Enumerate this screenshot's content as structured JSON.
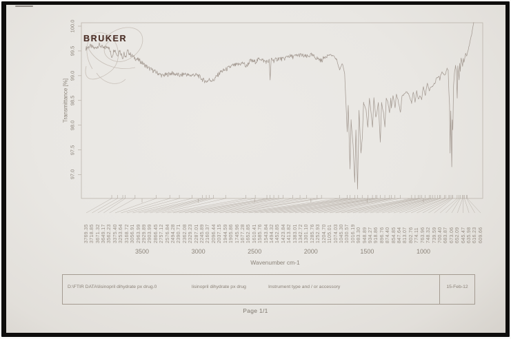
{
  "logo": {
    "text": "BRUKER"
  },
  "footer": {
    "file_path": "D:\\FTIR DATA\\lisinopril dihydrate px drug.0",
    "sample_name": "lisinopril dihydrate px drug",
    "instrument": "Instrument type and / or accessory",
    "date": "15-Feb-12"
  },
  "page": {
    "page_label": "Page 1/1"
  },
  "colors": {
    "paper": "#e9e7e3",
    "ink": "#8b8379",
    "spectrum_line": "#a0968d",
    "fan_line": "#a89f96",
    "frame_line": "#bcb5ac",
    "logo_ink": "#4e322a"
  },
  "chart_data": {
    "type": "line",
    "title": "",
    "xlabel": "Wavenumber cm-1",
    "ylabel": "Transmittance [%]",
    "x_axis_reversed": true,
    "x_range": [
      4000,
      550
    ],
    "y_range": [
      96.6,
      100.1
    ],
    "x_ticks": [
      3500,
      3000,
      2500,
      2000,
      1500,
      1000
    ],
    "y_ticks": [
      100.0,
      99.5,
      99.0,
      98.5,
      98.0,
      97.5,
      97.0
    ],
    "grid": false,
    "legend": "none",
    "noise_amp_high_wavenumber": 0.045,
    "noise_amp_fingerprint": 0.015,
    "peak_labels": [
      "3769.35",
      "3718.85",
      "3671.32",
      "3649.17",
      "3562.23",
      "3375.40",
      "3253.64",
      "3168.72",
      "3056.91",
      "2963.99",
      "2929.89",
      "2903.99",
      "2866.45",
      "2757.12",
      "2576.84",
      "2494.28",
      "2390.71",
      "2362.08",
      "2329.23",
      "2287.01",
      "2245.89",
      "2160.37",
      "2096.44",
      "2037.15",
      "1944.59",
      "1905.86",
      "1745.96",
      "1677.28",
      "1652.85",
      "1610.41",
      "1585.76",
      "1543.84",
      "1494.32",
      "1452.85",
      "1423.84",
      "1413.82",
      "1383.01",
      "1342.72",
      "1301.10",
      "1285.76",
      "1252.93",
      "1204.70",
      "1105.01",
      "1074.03",
      "1045.30",
      "1030.57",
      "1016.19",
      "983.30",
      "948.89",
      "934.27",
      "918.86",
      "896.76",
      "874.40",
      "854.85",
      "847.64",
      "813.07",
      "802.76",
      "774.11",
      "763.96",
      "748.32",
      "739.59",
      "700.40",
      "683.87",
      "673.06",
      "652.09",
      "645.47",
      "635.98",
      "616.23",
      "609.66"
    ],
    "series": [
      {
        "name": "transmittance",
        "points": [
          [
            4000,
            99.55
          ],
          [
            3960,
            99.6
          ],
          [
            3920,
            99.55
          ],
          [
            3880,
            99.62
          ],
          [
            3840,
            99.55
          ],
          [
            3800,
            99.6
          ],
          [
            3769,
            99.38
          ],
          [
            3745,
            99.55
          ],
          [
            3719,
            99.4
          ],
          [
            3700,
            99.52
          ],
          [
            3671,
            99.36
          ],
          [
            3660,
            99.48
          ],
          [
            3649,
            99.34
          ],
          [
            3630,
            99.5
          ],
          [
            3600,
            99.42
          ],
          [
            3560,
            99.35
          ],
          [
            3520,
            99.3
          ],
          [
            3480,
            99.22
          ],
          [
            3440,
            99.15
          ],
          [
            3400,
            99.1
          ],
          [
            3360,
            99.05
          ],
          [
            3320,
            99.0
          ],
          [
            3280,
            99.02
          ],
          [
            3240,
            99.05
          ],
          [
            3200,
            99.03
          ],
          [
            3160,
            99.0
          ],
          [
            3120,
            99.04
          ],
          [
            3080,
            99.0
          ],
          [
            3040,
            99.02
          ],
          [
            3000,
            99.0
          ],
          [
            2963,
            98.92
          ],
          [
            2929,
            98.88
          ],
          [
            2903,
            98.92
          ],
          [
            2866,
            98.9
          ],
          [
            2840,
            98.98
          ],
          [
            2800,
            99.08
          ],
          [
            2757,
            99.12
          ],
          [
            2700,
            99.2
          ],
          [
            2650,
            99.22
          ],
          [
            2600,
            99.26
          ],
          [
            2576,
            99.18
          ],
          [
            2540,
            99.3
          ],
          [
            2494,
            99.28
          ],
          [
            2450,
            99.35
          ],
          [
            2420,
            99.3
          ],
          [
            2390,
            99.28
          ],
          [
            2370,
            99.3
          ],
          [
            2362,
            98.9
          ],
          [
            2352,
            99.35
          ],
          [
            2329,
            99.3
          ],
          [
            2287,
            99.35
          ],
          [
            2245,
            99.33
          ],
          [
            2200,
            99.4
          ],
          [
            2160,
            99.38
          ],
          [
            2100,
            99.42
          ],
          [
            2037,
            99.38
          ],
          [
            2000,
            99.42
          ],
          [
            1944,
            99.35
          ],
          [
            1905,
            99.3
          ],
          [
            1870,
            99.4
          ],
          [
            1830,
            99.42
          ],
          [
            1800,
            99.4
          ],
          [
            1770,
            99.32
          ],
          [
            1745,
            99.12
          ],
          [
            1720,
            99.25
          ],
          [
            1700,
            99.05
          ],
          [
            1677,
            97.85
          ],
          [
            1668,
            98.4
          ],
          [
            1652,
            97.1
          ],
          [
            1643,
            98.1
          ],
          [
            1625,
            97.6
          ],
          [
            1610,
            96.85
          ],
          [
            1600,
            97.9
          ],
          [
            1585,
            96.7
          ],
          [
            1572,
            98.3
          ],
          [
            1555,
            97.45
          ],
          [
            1543,
            97.75
          ],
          [
            1532,
            98.45
          ],
          [
            1510,
            98.3
          ],
          [
            1494,
            97.95
          ],
          [
            1480,
            98.55
          ],
          [
            1465,
            98.25
          ],
          [
            1452,
            97.95
          ],
          [
            1440,
            98.55
          ],
          [
            1423,
            98.15
          ],
          [
            1413,
            98.25
          ],
          [
            1400,
            98.45
          ],
          [
            1383,
            97.65
          ],
          [
            1372,
            98.45
          ],
          [
            1355,
            98.25
          ],
          [
            1342,
            97.95
          ],
          [
            1330,
            98.55
          ],
          [
            1315,
            98.45
          ],
          [
            1301,
            98.25
          ],
          [
            1290,
            98.55
          ],
          [
            1285,
            98.35
          ],
          [
            1270,
            98.6
          ],
          [
            1252,
            98.35
          ],
          [
            1240,
            98.62
          ],
          [
            1225,
            98.5
          ],
          [
            1204,
            98.25
          ],
          [
            1190,
            98.6
          ],
          [
            1170,
            98.62
          ],
          [
            1150,
            98.68
          ],
          [
            1130,
            98.62
          ],
          [
            1105,
            98.45
          ],
          [
            1090,
            98.68
          ],
          [
            1074,
            98.45
          ],
          [
            1060,
            98.7
          ],
          [
            1045,
            98.52
          ],
          [
            1030,
            98.6
          ],
          [
            1016,
            98.52
          ],
          [
            1000,
            98.78
          ],
          [
            983,
            98.6
          ],
          [
            965,
            98.85
          ],
          [
            948,
            98.7
          ],
          [
            934,
            98.78
          ],
          [
            918,
            98.78
          ],
          [
            905,
            98.85
          ],
          [
            896,
            98.85
          ],
          [
            885,
            98.95
          ],
          [
            874,
            98.95
          ],
          [
            862,
            99.0
          ],
          [
            854,
            98.92
          ],
          [
            847,
            99.0
          ],
          [
            835,
            99.08
          ],
          [
            813,
            99.0
          ],
          [
            802,
            99.05
          ],
          [
            790,
            99.15
          ],
          [
            780,
            99.1
          ],
          [
            774,
            98.7
          ],
          [
            768,
            98.4
          ],
          [
            763,
            97.45
          ],
          [
            757,
            98.3
          ],
          [
            748,
            97.15
          ],
          [
            743,
            98.1
          ],
          [
            739,
            97.9
          ],
          [
            732,
            98.8
          ],
          [
            725,
            99.05
          ],
          [
            715,
            99.2
          ],
          [
            708,
            99.1
          ],
          [
            700,
            98.55
          ],
          [
            694,
            99.2
          ],
          [
            683,
            98.9
          ],
          [
            678,
            99.25
          ],
          [
            673,
            99.1
          ],
          [
            665,
            99.35
          ],
          [
            652,
            99.2
          ],
          [
            645,
            99.35
          ],
          [
            640,
            99.28
          ],
          [
            635,
            99.32
          ],
          [
            625,
            99.45
          ],
          [
            616,
            99.4
          ],
          [
            609,
            99.45
          ],
          [
            600,
            99.55
          ],
          [
            590,
            99.65
          ],
          [
            580,
            99.75
          ],
          [
            570,
            99.85
          ],
          [
            560,
            100.0
          ],
          [
            553,
            100.08
          ]
        ]
      }
    ]
  }
}
